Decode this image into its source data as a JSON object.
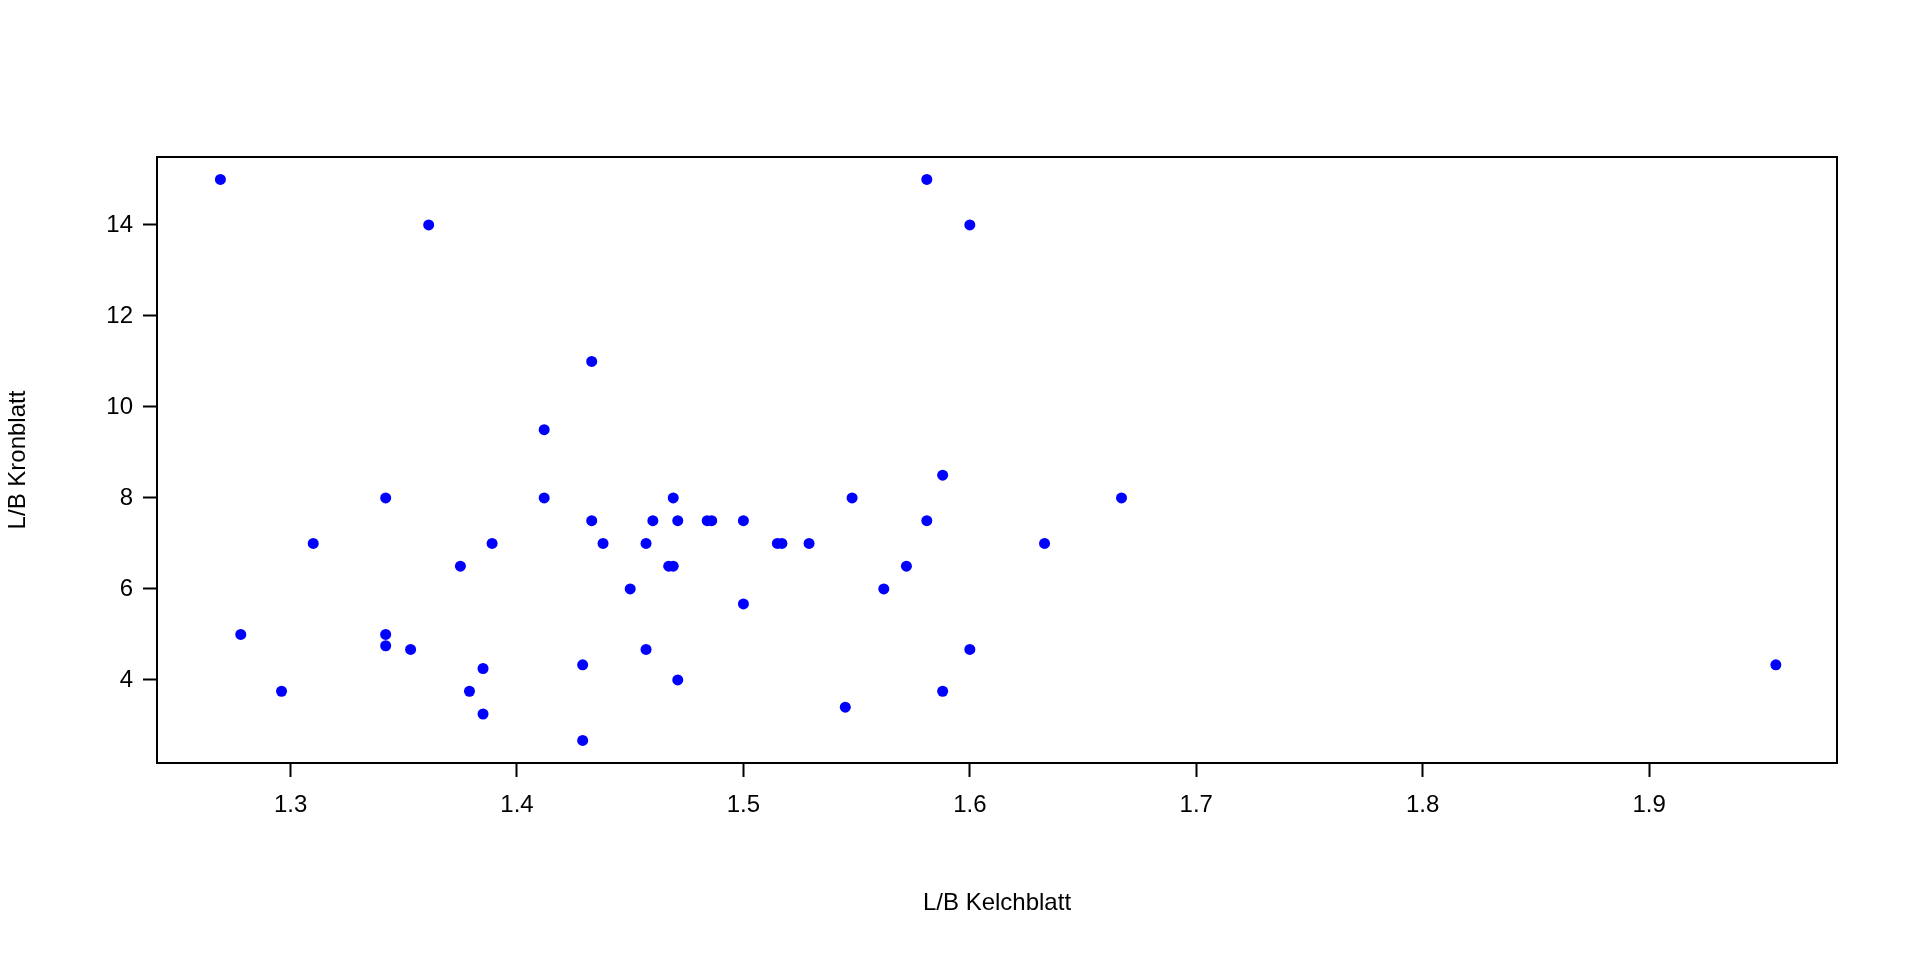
{
  "chart_data": {
    "type": "scatter",
    "xlabel": "L/B Kelchblatt",
    "ylabel": "L/B Kronblatt",
    "x": [
      1.269,
      1.361,
      1.342,
      1.31,
      1.389,
      1.375,
      1.278,
      1.342,
      1.342,
      1.353,
      1.385,
      1.296,
      1.379,
      1.385,
      1.433,
      1.412,
      1.412,
      1.469,
      1.548,
      1.433,
      1.46,
      1.471,
      1.484,
      1.486,
      1.5,
      1.438,
      1.457,
      1.515,
      1.517,
      1.529,
      1.467,
      1.469,
      1.45,
      1.562,
      1.5,
      1.457,
      1.429,
      1.471,
      1.545,
      1.429,
      1.581,
      1.6,
      1.588,
      1.667,
      1.581,
      1.633,
      1.572,
      1.6,
      1.588,
      1.956
    ],
    "series": [
      {
        "color": "#0000ff",
        "values": [
          15,
          14,
          8,
          7,
          7,
          6.5,
          5,
          5,
          4.75,
          4.67,
          4.25,
          3.75,
          3.75,
          3.25,
          11,
          9.5,
          8,
          8,
          8,
          7.5,
          7.5,
          7.5,
          7.5,
          7.5,
          7.5,
          7,
          7,
          7,
          7,
          7,
          6.5,
          6.5,
          6,
          6,
          5.67,
          4.67,
          4.33,
          4,
          3.4,
          2.67,
          15,
          14,
          8.5,
          8,
          7.5,
          7,
          6.5,
          4.67,
          3.75,
          4.33
        ]
      }
    ],
    "xlim": [
      1.241,
      1.983
    ],
    "ylim": [
      2.173,
      15.493
    ],
    "xticks": [
      1.3,
      1.4,
      1.5,
      1.6,
      1.7,
      1.8,
      1.9
    ],
    "yticks": [
      4,
      6,
      8,
      10,
      12,
      14
    ],
    "grid": false,
    "legend": false,
    "marker": "circle"
  }
}
